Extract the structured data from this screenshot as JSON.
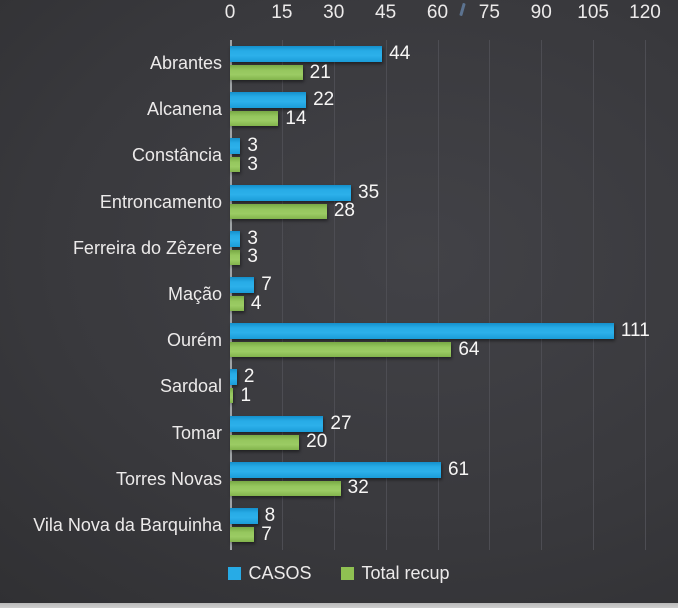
{
  "chart_data": {
    "type": "bar",
    "orientation": "horizontal",
    "title": "",
    "xlabel": "",
    "ylabel": "",
    "categories": [
      "Abrantes",
      "Alcanena",
      "Constância",
      "Entroncamento",
      "Ferreira do Zêzere",
      "Mação",
      "Ourém",
      "Sardoal",
      "Tomar",
      "Torres Novas",
      "Vila Nova da Barquinha"
    ],
    "series": [
      {
        "name": "CASOS",
        "color": "#27abe6",
        "values": [
          44,
          22,
          3,
          35,
          3,
          7,
          111,
          2,
          27,
          61,
          8
        ]
      },
      {
        "name": "Total recup",
        "color": "#8fc052",
        "values": [
          21,
          14,
          3,
          28,
          3,
          4,
          64,
          1,
          20,
          32,
          7
        ]
      }
    ],
    "x_ticks": [
      0,
      15,
      30,
      45,
      60,
      75,
      90,
      105,
      120
    ],
    "xlim": [
      0,
      120
    ],
    "grid": true,
    "data_labels": true,
    "legend_position": "bottom"
  },
  "legend": {
    "items": [
      {
        "label": "CASOS",
        "color": "#27abe6"
      },
      {
        "label": "Total recup",
        "color": "#8fc052"
      }
    ]
  },
  "colors": {
    "background_center": "#424247",
    "background_edge": "#2a2a2c",
    "bar_blue": "#27abe6",
    "bar_green": "#8fc052",
    "gridline": "#4d4d53",
    "axis_line": "#9fa3a6",
    "text": "#eceaea",
    "data_label_text": "#f7f6f5",
    "bottom_strip": "#c9c9c9"
  }
}
